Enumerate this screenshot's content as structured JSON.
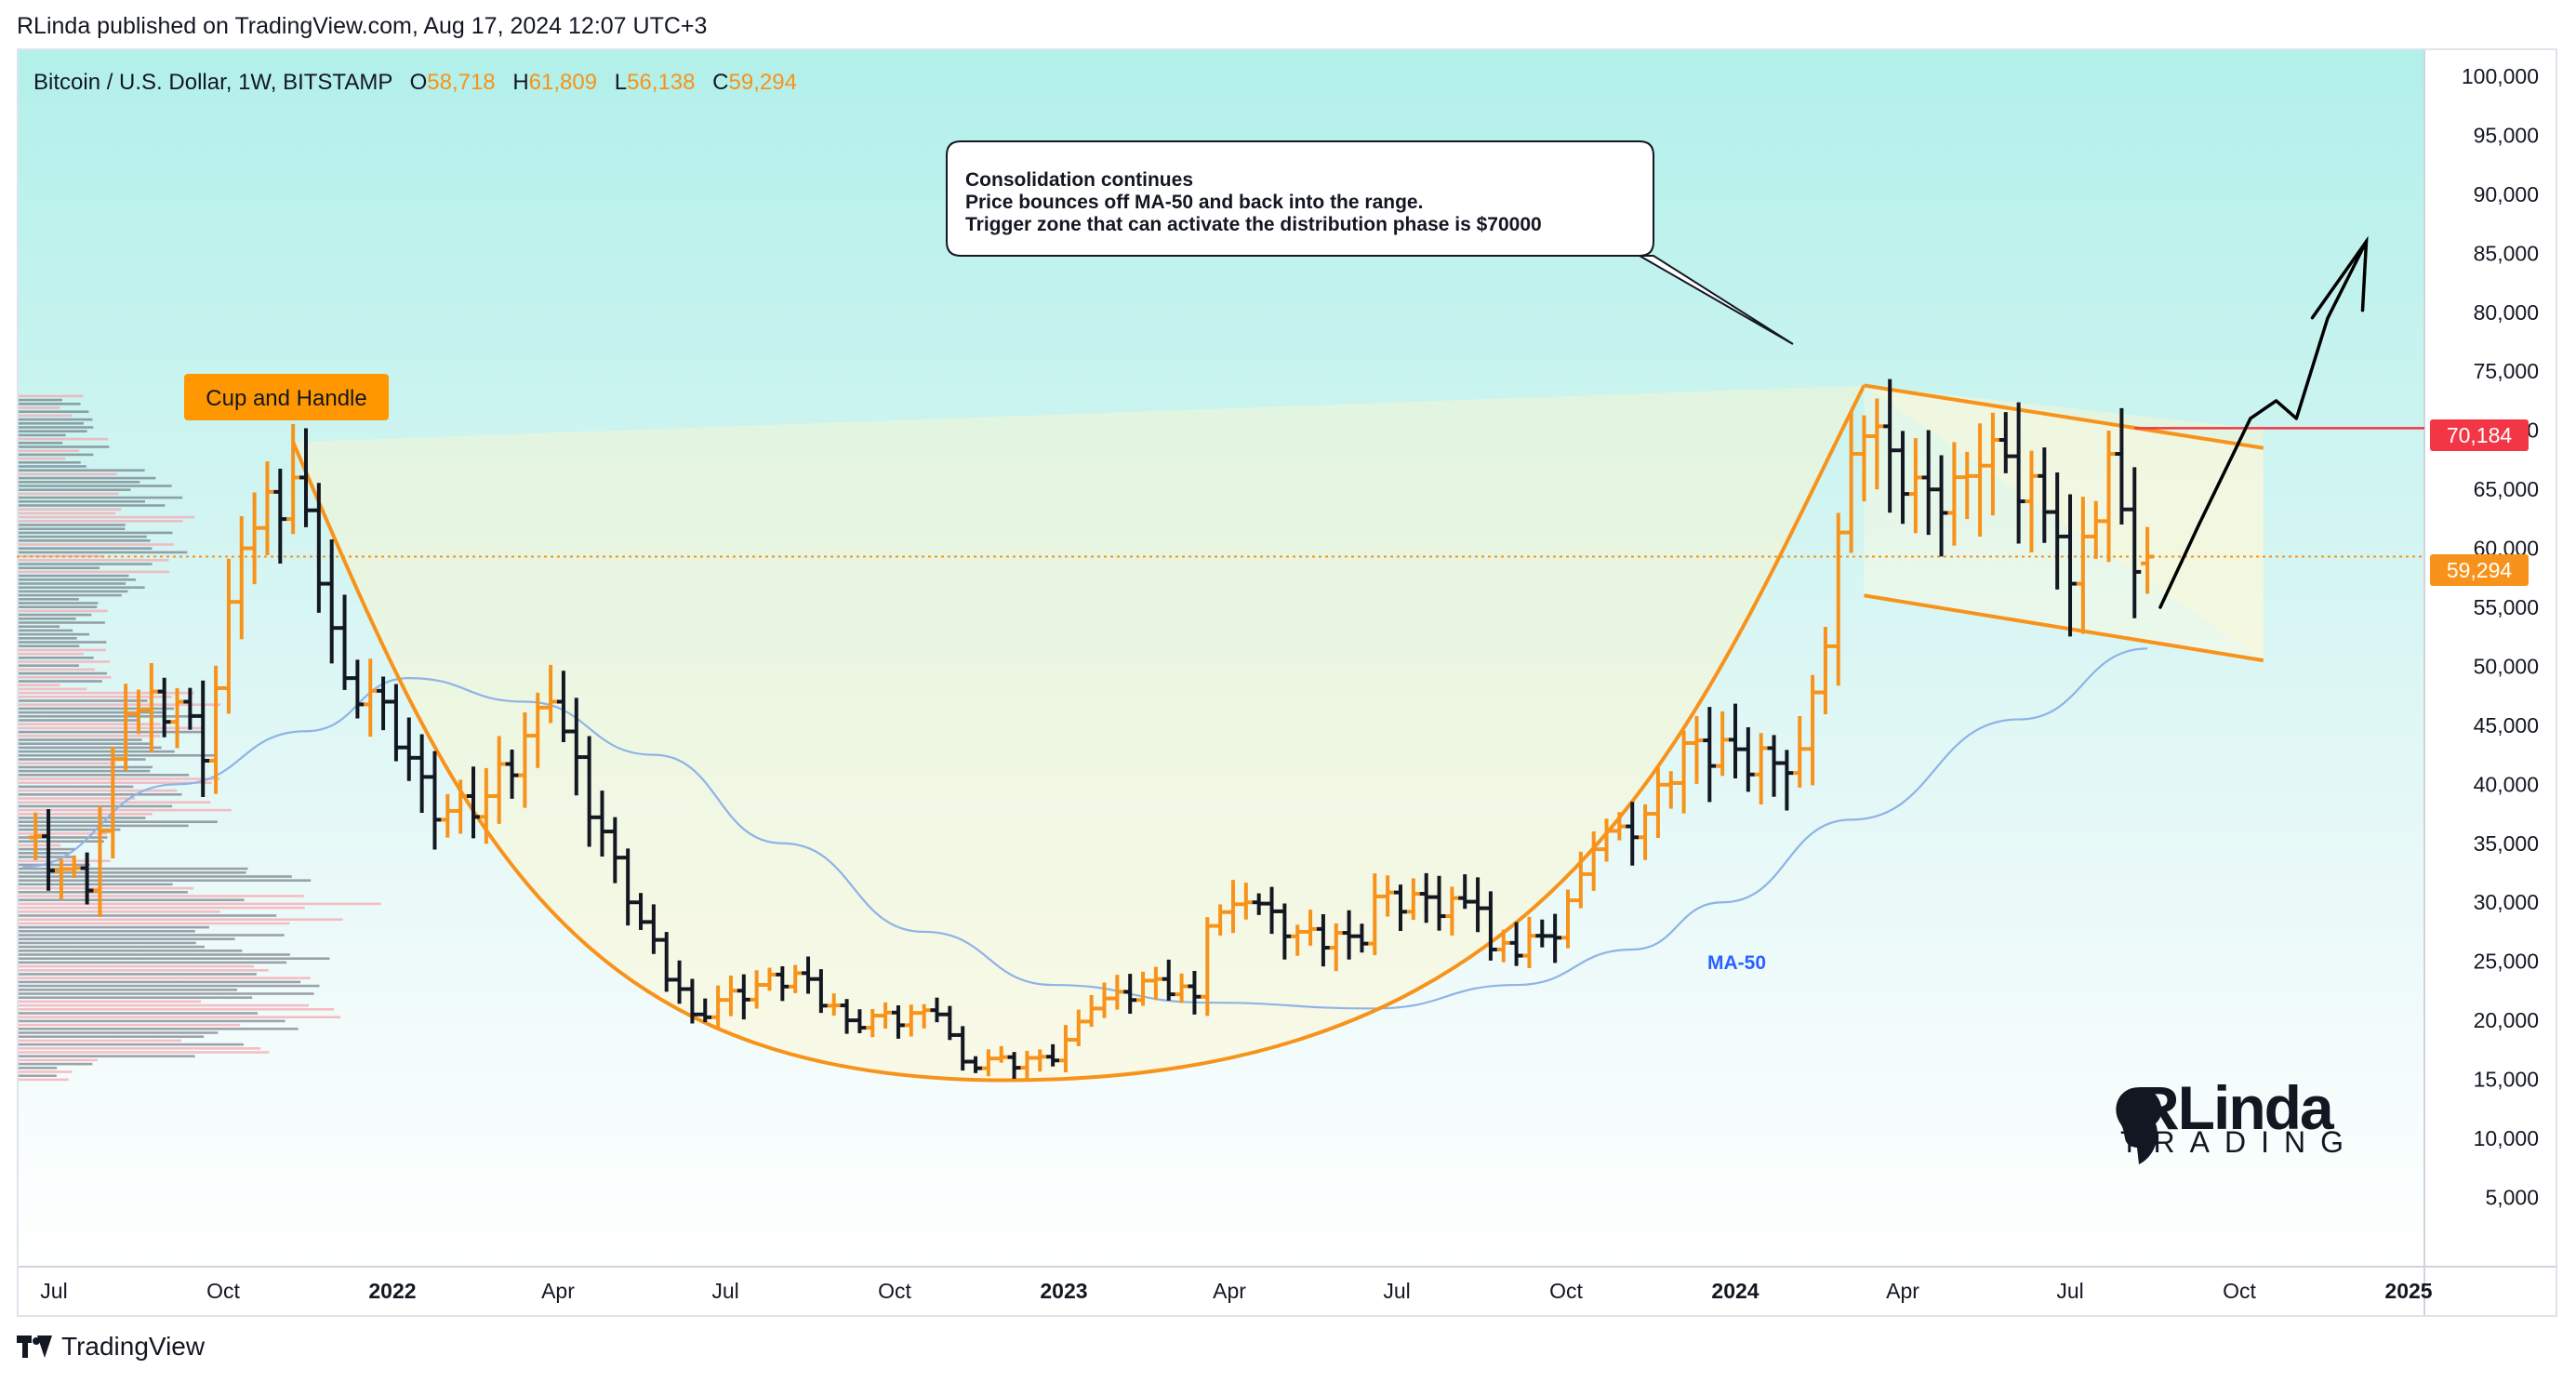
{
  "header": {
    "published": "RLinda published on TradingView.com, Aug 17, 2024 12:07 UTC+3"
  },
  "legend": {
    "symbol": "Bitcoin / U.S. Dollar, 1W, BITSTAMP",
    "o_label": "O",
    "o": "58,718",
    "h_label": "H",
    "h": "61,809",
    "l_label": "L",
    "l": "56,138",
    "c_label": "C",
    "c": "59,294"
  },
  "annotations": {
    "cup_and_handle": "Cup and Handle",
    "callout": [
      "Consolidation continues",
      "Price bounces off MA-50 and back into the range.",
      "Trigger zone that can activate the distribution phase is $70000"
    ],
    "ma_label": "MA-50",
    "brand_main": "RLinda",
    "brand_sub": "TRADING"
  },
  "price_tags": {
    "level": "70,184",
    "last": "59,294"
  },
  "footer": {
    "brand": "TradingView"
  },
  "colors": {
    "bull": "#f7931a",
    "bear": "#131722",
    "accent": "#f7931a",
    "ma": "#8fb3e6",
    "level": "#f23645",
    "ma_label": "#2962ff"
  },
  "chart_data": {
    "type": "candlestick",
    "instrument": "Bitcoin / U.S. Dollar",
    "timeframe": "1W",
    "exchange": "BITSTAMP",
    "y_ticks": [
      5000,
      10000,
      15000,
      20000,
      25000,
      30000,
      35000,
      40000,
      45000,
      50000,
      55000,
      60000,
      65000,
      70000,
      75000,
      80000,
      85000,
      90000,
      95000,
      100000
    ],
    "y_tick_labels": [
      "5,000",
      "10,000",
      "15,000",
      "20,000",
      "25,000",
      "30,000",
      "35,000",
      "40,000",
      "45,000",
      "50,000",
      "55,000",
      "60,000",
      "65,000",
      "70,000",
      "75,000",
      "80,000",
      "85,000",
      "90,000",
      "95,000",
      "100,000"
    ],
    "x_ticks": [
      {
        "date": "2021-07-01",
        "label": "Jul",
        "bold": false
      },
      {
        "date": "2021-10-01",
        "label": "Oct",
        "bold": false
      },
      {
        "date": "2022-01-01",
        "label": "2022",
        "bold": true
      },
      {
        "date": "2022-04-01",
        "label": "Apr",
        "bold": false
      },
      {
        "date": "2022-07-01",
        "label": "Jul",
        "bold": false
      },
      {
        "date": "2022-10-01",
        "label": "Oct",
        "bold": false
      },
      {
        "date": "2023-01-01",
        "label": "2023",
        "bold": true
      },
      {
        "date": "2023-04-01",
        "label": "Apr",
        "bold": false
      },
      {
        "date": "2023-07-01",
        "label": "Jul",
        "bold": false
      },
      {
        "date": "2023-10-01",
        "label": "Oct",
        "bold": false
      },
      {
        "date": "2024-01-01",
        "label": "2024",
        "bold": true
      },
      {
        "date": "2024-04-01",
        "label": "Apr",
        "bold": false
      },
      {
        "date": "2024-07-01",
        "label": "Jul",
        "bold": false
      },
      {
        "date": "2024-10-01",
        "label": "Oct",
        "bold": false
      },
      {
        "date": "2025-01-01",
        "label": "2025",
        "bold": true
      }
    ],
    "anchors": [
      [
        "2021-06-14",
        35500
      ],
      [
        "2021-07-19",
        31000
      ],
      [
        "2021-08-09",
        46000
      ],
      [
        "2021-09-06",
        47000
      ],
      [
        "2021-09-20",
        42000
      ],
      [
        "2021-10-11",
        60000
      ],
      [
        "2021-11-08",
        66000
      ],
      [
        "2021-11-22",
        57000
      ],
      [
        "2021-12-06",
        49000
      ],
      [
        "2021-12-27",
        47000
      ],
      [
        "2022-01-24",
        37000
      ],
      [
        "2022-02-21",
        39000
      ],
      [
        "2022-03-28",
        47000
      ],
      [
        "2022-05-09",
        30000
      ],
      [
        "2022-06-13",
        20500
      ],
      [
        "2022-07-18",
        23000
      ],
      [
        "2022-08-08",
        24000
      ],
      [
        "2022-09-05",
        20000
      ],
      [
        "2022-10-24",
        20500
      ],
      [
        "2022-11-07",
        16500
      ],
      [
        "2022-12-26",
        16600
      ],
      [
        "2023-01-16",
        21000
      ],
      [
        "2023-02-20",
        23500
      ],
      [
        "2023-03-13",
        22000
      ],
      [
        "2023-03-20",
        28000
      ],
      [
        "2023-04-10",
        30000
      ],
      [
        "2023-05-08",
        27500
      ],
      [
        "2023-06-12",
        26500
      ],
      [
        "2023-06-19",
        30500
      ],
      [
        "2023-08-14",
        29500
      ],
      [
        "2023-08-21",
        26000
      ],
      [
        "2023-09-25",
        27000
      ],
      [
        "2023-10-16",
        34500
      ],
      [
        "2023-11-13",
        37500
      ],
      [
        "2023-12-04",
        43500
      ],
      [
        "2024-01-22",
        41800
      ],
      [
        "2024-02-05",
        43000
      ],
      [
        "2024-02-19",
        51700
      ],
      [
        "2024-03-04",
        68000
      ],
      [
        "2024-03-11",
        69500
      ],
      [
        "2024-04-08",
        66000
      ],
      [
        "2024-04-22",
        63000
      ],
      [
        "2024-05-13",
        67000
      ],
      [
        "2024-05-27",
        67800
      ],
      [
        "2024-06-24",
        61000
      ],
      [
        "2024-07-01",
        57000
      ],
      [
        "2024-07-22",
        68000
      ],
      [
        "2024-08-05",
        58000
      ],
      [
        "2024-08-12",
        59294
      ]
    ],
    "last_candle": {
      "date": "2024-08-12",
      "open": 58718,
      "high": 61809,
      "low": 56138,
      "close": 59294
    },
    "ma50": [
      [
        "2021-06-14",
        33000
      ],
      [
        "2021-09-06",
        40000
      ],
      [
        "2021-11-15",
        44500
      ],
      [
        "2022-01-10",
        49000
      ],
      [
        "2022-03-14",
        47000
      ],
      [
        "2022-05-23",
        42500
      ],
      [
        "2022-08-01",
        35000
      ],
      [
        "2022-10-17",
        27500
      ],
      [
        "2022-12-26",
        23000
      ],
      [
        "2023-03-20",
        21500
      ],
      [
        "2023-06-19",
        21000
      ],
      [
        "2023-09-04",
        23000
      ],
      [
        "2023-11-06",
        26000
      ],
      [
        "2023-12-25",
        30000
      ],
      [
        "2024-03-04",
        37000
      ],
      [
        "2024-06-03",
        45500
      ],
      [
        "2024-08-12",
        51500
      ]
    ],
    "levels": {
      "resistance": 70184,
      "last_close": 59294
    },
    "channel": {
      "upper": [
        [
          "2024-03-11",
          73800
        ],
        [
          "2024-10-14",
          68500
        ]
      ],
      "lower": [
        [
          "2024-03-11",
          56000
        ],
        [
          "2024-10-14",
          50500
        ]
      ]
    },
    "cup": {
      "left_rim": [
        "2021-11-08",
        69000
      ],
      "bottom": [
        "2022-12-26",
        15000
      ],
      "right_rim": [
        "2024-03-11",
        73800
      ]
    },
    "projection": [
      [
        "2024-08-19",
        55000
      ],
      [
        "2024-09-09",
        62000
      ],
      [
        "2024-10-07",
        71000
      ],
      [
        "2024-10-21",
        72500
      ],
      [
        "2024-11-01",
        71000
      ],
      [
        "2024-11-18",
        79500
      ],
      [
        "2024-12-09",
        86000
      ]
    ]
  }
}
